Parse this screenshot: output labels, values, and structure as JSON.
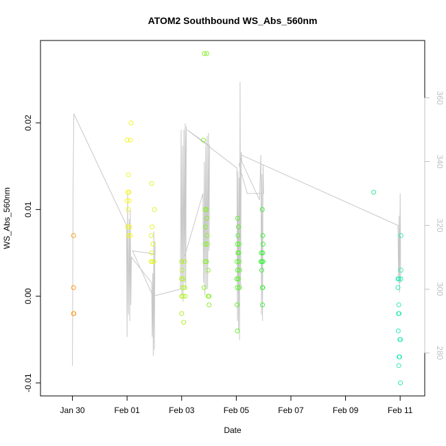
{
  "chart_data": {
    "type": "scatter",
    "title": "ATOM2 Southbound WS_Abs_560nm",
    "xlabel": "Date",
    "ylabel": "WS_Abs_560nm",
    "x_ticks": [
      "Jan 30",
      "Feb 01",
      "Feb 03",
      "Feb 05",
      "Feb 07",
      "Feb 09",
      "Feb 11"
    ],
    "y_ticks": [
      "-0.01",
      "0.00",
      "0.01",
      "0.02"
    ],
    "y2_ticks": [
      "280",
      "300",
      "320",
      "340",
      "360"
    ],
    "xlim_days": [
      -1.17,
      12.9
    ],
    "ylim": [
      -0.0115,
      0.0295
    ],
    "y2lim": [
      266.5,
      378
    ],
    "grid": false,
    "legend": "none",
    "axis_colors": {
      "primary": "#000000",
      "secondary": "#c0c0c0",
      "line": "#c8c8c8"
    },
    "point_series": [
      {
        "color": "#ff9a1e",
        "points": [
          {
            "x": 0.04,
            "y": 0.007
          },
          {
            "x": 0.04,
            "y": 0.001
          },
          {
            "x": 0.04,
            "y": -0.002
          },
          {
            "x": 0.05,
            "y": -0.002
          }
        ]
      },
      {
        "color": "#f3f52a",
        "points": [
          {
            "x": 2.0,
            "y": 0.018
          },
          {
            "x": 2.12,
            "y": 0.018
          },
          {
            "x": 2.15,
            "y": 0.02
          },
          {
            "x": 2.05,
            "y": 0.014
          },
          {
            "x": 2.03,
            "y": 0.012
          },
          {
            "x": 2.07,
            "y": 0.012
          },
          {
            "x": 2.0,
            "y": 0.011
          },
          {
            "x": 2.08,
            "y": 0.011
          },
          {
            "x": 2.04,
            "y": 0.01
          },
          {
            "x": 2.02,
            "y": 0.008
          },
          {
            "x": 2.09,
            "y": 0.008
          },
          {
            "x": 2.06,
            "y": 0.007
          },
          {
            "x": 2.12,
            "y": 0.007
          }
        ]
      },
      {
        "color": "#e1f52d",
        "points": [
          {
            "x": 2.9,
            "y": 0.013
          },
          {
            "x": 3.0,
            "y": 0.01
          },
          {
            "x": 2.92,
            "y": 0.008
          },
          {
            "x": 2.88,
            "y": 0.007
          },
          {
            "x": 2.95,
            "y": 0.006
          },
          {
            "x": 2.9,
            "y": 0.005
          },
          {
            "x": 2.88,
            "y": 0.004
          },
          {
            "x": 2.93,
            "y": 0.004
          },
          {
            "x": 2.98,
            "y": 0.004
          }
        ]
      },
      {
        "color": "#b2f02a",
        "points": [
          {
            "x": 4.0,
            "y": 0.004
          },
          {
            "x": 4.1,
            "y": 0.004
          },
          {
            "x": 4.02,
            "y": 0.003
          },
          {
            "x": 4.0,
            "y": 0.002
          },
          {
            "x": 4.06,
            "y": 0.002
          },
          {
            "x": 4.03,
            "y": 0.001
          },
          {
            "x": 4.11,
            "y": 0.001
          },
          {
            "x": 4.0,
            "y": 0.0
          },
          {
            "x": 4.13,
            "y": 0.0
          },
          {
            "x": 4.05,
            "y": 0.0
          },
          {
            "x": 4.0,
            "y": -0.002
          },
          {
            "x": 4.07,
            "y": -0.003
          }
        ]
      },
      {
        "color": "#88ee2b",
        "points": [
          {
            "x": 4.83,
            "y": 0.028
          },
          {
            "x": 4.92,
            "y": 0.028
          },
          {
            "x": 4.8,
            "y": 0.018
          },
          {
            "x": 4.86,
            "y": 0.01
          },
          {
            "x": 4.9,
            "y": 0.01
          },
          {
            "x": 4.92,
            "y": 0.009
          },
          {
            "x": 4.88,
            "y": 0.008
          },
          {
            "x": 4.93,
            "y": 0.007
          },
          {
            "x": 4.87,
            "y": 0.006
          },
          {
            "x": 4.94,
            "y": 0.006
          },
          {
            "x": 4.86,
            "y": 0.004
          },
          {
            "x": 4.91,
            "y": 0.004
          },
          {
            "x": 4.97,
            "y": 0.003
          },
          {
            "x": 4.82,
            "y": 0.001
          },
          {
            "x": 5.0,
            "y": 0.0
          },
          {
            "x": 4.97,
            "y": 0.0
          },
          {
            "x": 5.0,
            "y": -0.001
          }
        ]
      },
      {
        "color": "#5df22e",
        "points": [
          {
            "x": 6.05,
            "y": 0.009
          },
          {
            "x": 6.08,
            "y": 0.008
          },
          {
            "x": 6.06,
            "y": 0.007
          },
          {
            "x": 6.04,
            "y": 0.006
          },
          {
            "x": 6.1,
            "y": 0.006
          },
          {
            "x": 6.06,
            "y": 0.005
          },
          {
            "x": 6.09,
            "y": 0.005
          },
          {
            "x": 6.03,
            "y": 0.004
          },
          {
            "x": 6.1,
            "y": 0.004
          },
          {
            "x": 6.05,
            "y": 0.003
          },
          {
            "x": 6.12,
            "y": 0.003
          },
          {
            "x": 6.02,
            "y": 0.002
          },
          {
            "x": 6.07,
            "y": 0.002
          },
          {
            "x": 6.04,
            "y": 0.001
          },
          {
            "x": 6.11,
            "y": 0.001
          },
          {
            "x": 6.03,
            "y": -0.001
          },
          {
            "x": 6.04,
            "y": -0.004
          }
        ]
      },
      {
        "color": "#3ef03c",
        "points": [
          {
            "x": 6.95,
            "y": 0.01
          },
          {
            "x": 6.97,
            "y": 0.007
          },
          {
            "x": 6.98,
            "y": 0.006
          },
          {
            "x": 6.92,
            "y": 0.005
          },
          {
            "x": 6.97,
            "y": 0.005
          },
          {
            "x": 6.9,
            "y": 0.004
          },
          {
            "x": 6.94,
            "y": 0.004
          },
          {
            "x": 6.98,
            "y": 0.004
          },
          {
            "x": 6.93,
            "y": 0.003
          },
          {
            "x": 6.96,
            "y": 0.001
          },
          {
            "x": 6.97,
            "y": 0.001
          },
          {
            "x": 6.96,
            "y": -0.001
          }
        ]
      },
      {
        "color": "#34eb9a",
        "points": [
          {
            "x": 11.03,
            "y": 0.012
          }
        ]
      },
      {
        "color": "#2ee9b7",
        "points": [
          {
            "x": 12.03,
            "y": 0.007
          },
          {
            "x": 12.03,
            "y": 0.003
          },
          {
            "x": 11.92,
            "y": 0.002
          },
          {
            "x": 11.95,
            "y": 0.002
          },
          {
            "x": 12.02,
            "y": 0.002
          },
          {
            "x": 11.92,
            "y": 0.001
          },
          {
            "x": 11.95,
            "y": -0.001
          },
          {
            "x": 11.94,
            "y": -0.002
          },
          {
            "x": 11.96,
            "y": -0.002
          },
          {
            "x": 11.93,
            "y": -0.004
          },
          {
            "x": 11.99,
            "y": -0.005
          },
          {
            "x": 12.01,
            "y": -0.005
          },
          {
            "x": 11.96,
            "y": -0.007
          },
          {
            "x": 11.98,
            "y": -0.007
          },
          {
            "x": 11.95,
            "y": -0.008
          },
          {
            "x": 12.01,
            "y": -0.01
          }
        ]
      }
    ],
    "line_series": {
      "y_axis": "secondary",
      "points": [
        {
          "x": 0.0,
          "y": 276
        },
        {
          "x": 0.02,
          "y": 330
        },
        {
          "x": 0.05,
          "y": 355
        },
        {
          "x": 1.98,
          "y": 320
        },
        {
          "x": 2.0,
          "y": 285
        },
        {
          "x": 2.02,
          "y": 330
        },
        {
          "x": 2.05,
          "y": 292
        },
        {
          "x": 2.08,
          "y": 322
        },
        {
          "x": 2.1,
          "y": 290
        },
        {
          "x": 2.12,
          "y": 325
        },
        {
          "x": 2.14,
          "y": 295
        },
        {
          "x": 2.16,
          "y": 310
        },
        {
          "x": 2.9,
          "y": 302
        },
        {
          "x": 2.92,
          "y": 285
        },
        {
          "x": 2.94,
          "y": 305
        },
        {
          "x": 2.96,
          "y": 279
        },
        {
          "x": 2.98,
          "y": 318
        },
        {
          "x": 3.0,
          "y": 281
        },
        {
          "x": 3.02,
          "y": 315
        },
        {
          "x": 3.03,
          "y": 311
        },
        {
          "x": 2.2,
          "y": 312
        },
        {
          "x": 2.94,
          "y": 298
        },
        {
          "x": 3.05,
          "y": 298
        },
        {
          "x": 3.95,
          "y": 300
        },
        {
          "x": 3.98,
          "y": 350
        },
        {
          "x": 4.0,
          "y": 298
        },
        {
          "x": 4.03,
          "y": 345
        },
        {
          "x": 4.05,
          "y": 296
        },
        {
          "x": 4.08,
          "y": 350
        },
        {
          "x": 4.1,
          "y": 302
        },
        {
          "x": 4.13,
          "y": 352
        },
        {
          "x": 4.15,
          "y": 300
        },
        {
          "x": 4.17,
          "y": 351
        },
        {
          "x": 4.1,
          "y": 310
        },
        {
          "x": 4.78,
          "y": 330
        },
        {
          "x": 4.8,
          "y": 302
        },
        {
          "x": 4.83,
          "y": 340
        },
        {
          "x": 4.85,
          "y": 298
        },
        {
          "x": 4.88,
          "y": 345
        },
        {
          "x": 4.9,
          "y": 300
        },
        {
          "x": 4.93,
          "y": 348
        },
        {
          "x": 4.95,
          "y": 300
        },
        {
          "x": 4.98,
          "y": 349
        },
        {
          "x": 5.0,
          "y": 312
        },
        {
          "x": 5.02,
          "y": 345
        },
        {
          "x": 4.2,
          "y": 350
        },
        {
          "x": 6.02,
          "y": 338
        },
        {
          "x": 6.04,
          "y": 290
        },
        {
          "x": 6.06,
          "y": 337
        },
        {
          "x": 6.08,
          "y": 287
        },
        {
          "x": 6.1,
          "y": 335
        },
        {
          "x": 6.12,
          "y": 284
        },
        {
          "x": 6.14,
          "y": 365
        },
        {
          "x": 6.16,
          "y": 300
        },
        {
          "x": 6.18,
          "y": 343
        },
        {
          "x": 6.2,
          "y": 340
        },
        {
          "x": 6.85,
          "y": 328
        },
        {
          "x": 6.9,
          "y": 342
        },
        {
          "x": 6.92,
          "y": 292
        },
        {
          "x": 6.94,
          "y": 336
        },
        {
          "x": 6.96,
          "y": 290
        },
        {
          "x": 6.98,
          "y": 339
        },
        {
          "x": 7.0,
          "y": 330
        },
        {
          "x": 6.4,
          "y": 330
        },
        {
          "x": 6.1,
          "y": 339
        },
        {
          "x": 6.2,
          "y": 342
        },
        {
          "x": 11.92,
          "y": 320
        },
        {
          "x": 11.94,
          "y": 302
        },
        {
          "x": 11.96,
          "y": 323
        },
        {
          "x": 11.98,
          "y": 299
        },
        {
          "x": 12.0,
          "y": 330
        },
        {
          "x": 12.02,
          "y": 302
        }
      ]
    }
  }
}
